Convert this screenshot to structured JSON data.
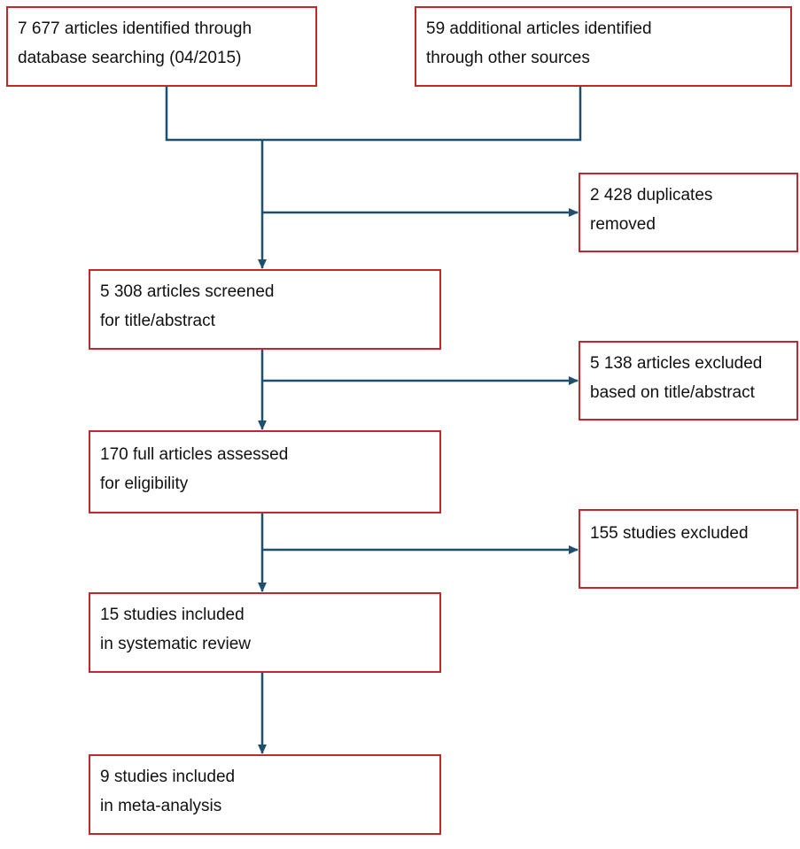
{
  "nodes": [
    {
      "lines": [
        "7 677 articles identified through",
        "database searching (04/2015)"
      ]
    },
    {
      "lines": [
        "59 additional articles identified",
        "through other sources"
      ]
    },
    {
      "lines": [
        "2 428 duplicates",
        "removed"
      ]
    },
    {
      "lines": [
        "5 308 articles screened",
        "for title/abstract"
      ]
    },
    {
      "lines": [
        "5 138 articles excluded",
        "based on title/abstract"
      ]
    },
    {
      "lines": [
        "170 full articles assessed",
        "for eligibility"
      ]
    },
    {
      "lines": [
        "155 studies excluded"
      ]
    },
    {
      "lines": [
        "15 studies included",
        "in systematic review"
      ]
    },
    {
      "lines": [
        "9 studies included",
        "in meta-analysis"
      ]
    }
  ]
}
